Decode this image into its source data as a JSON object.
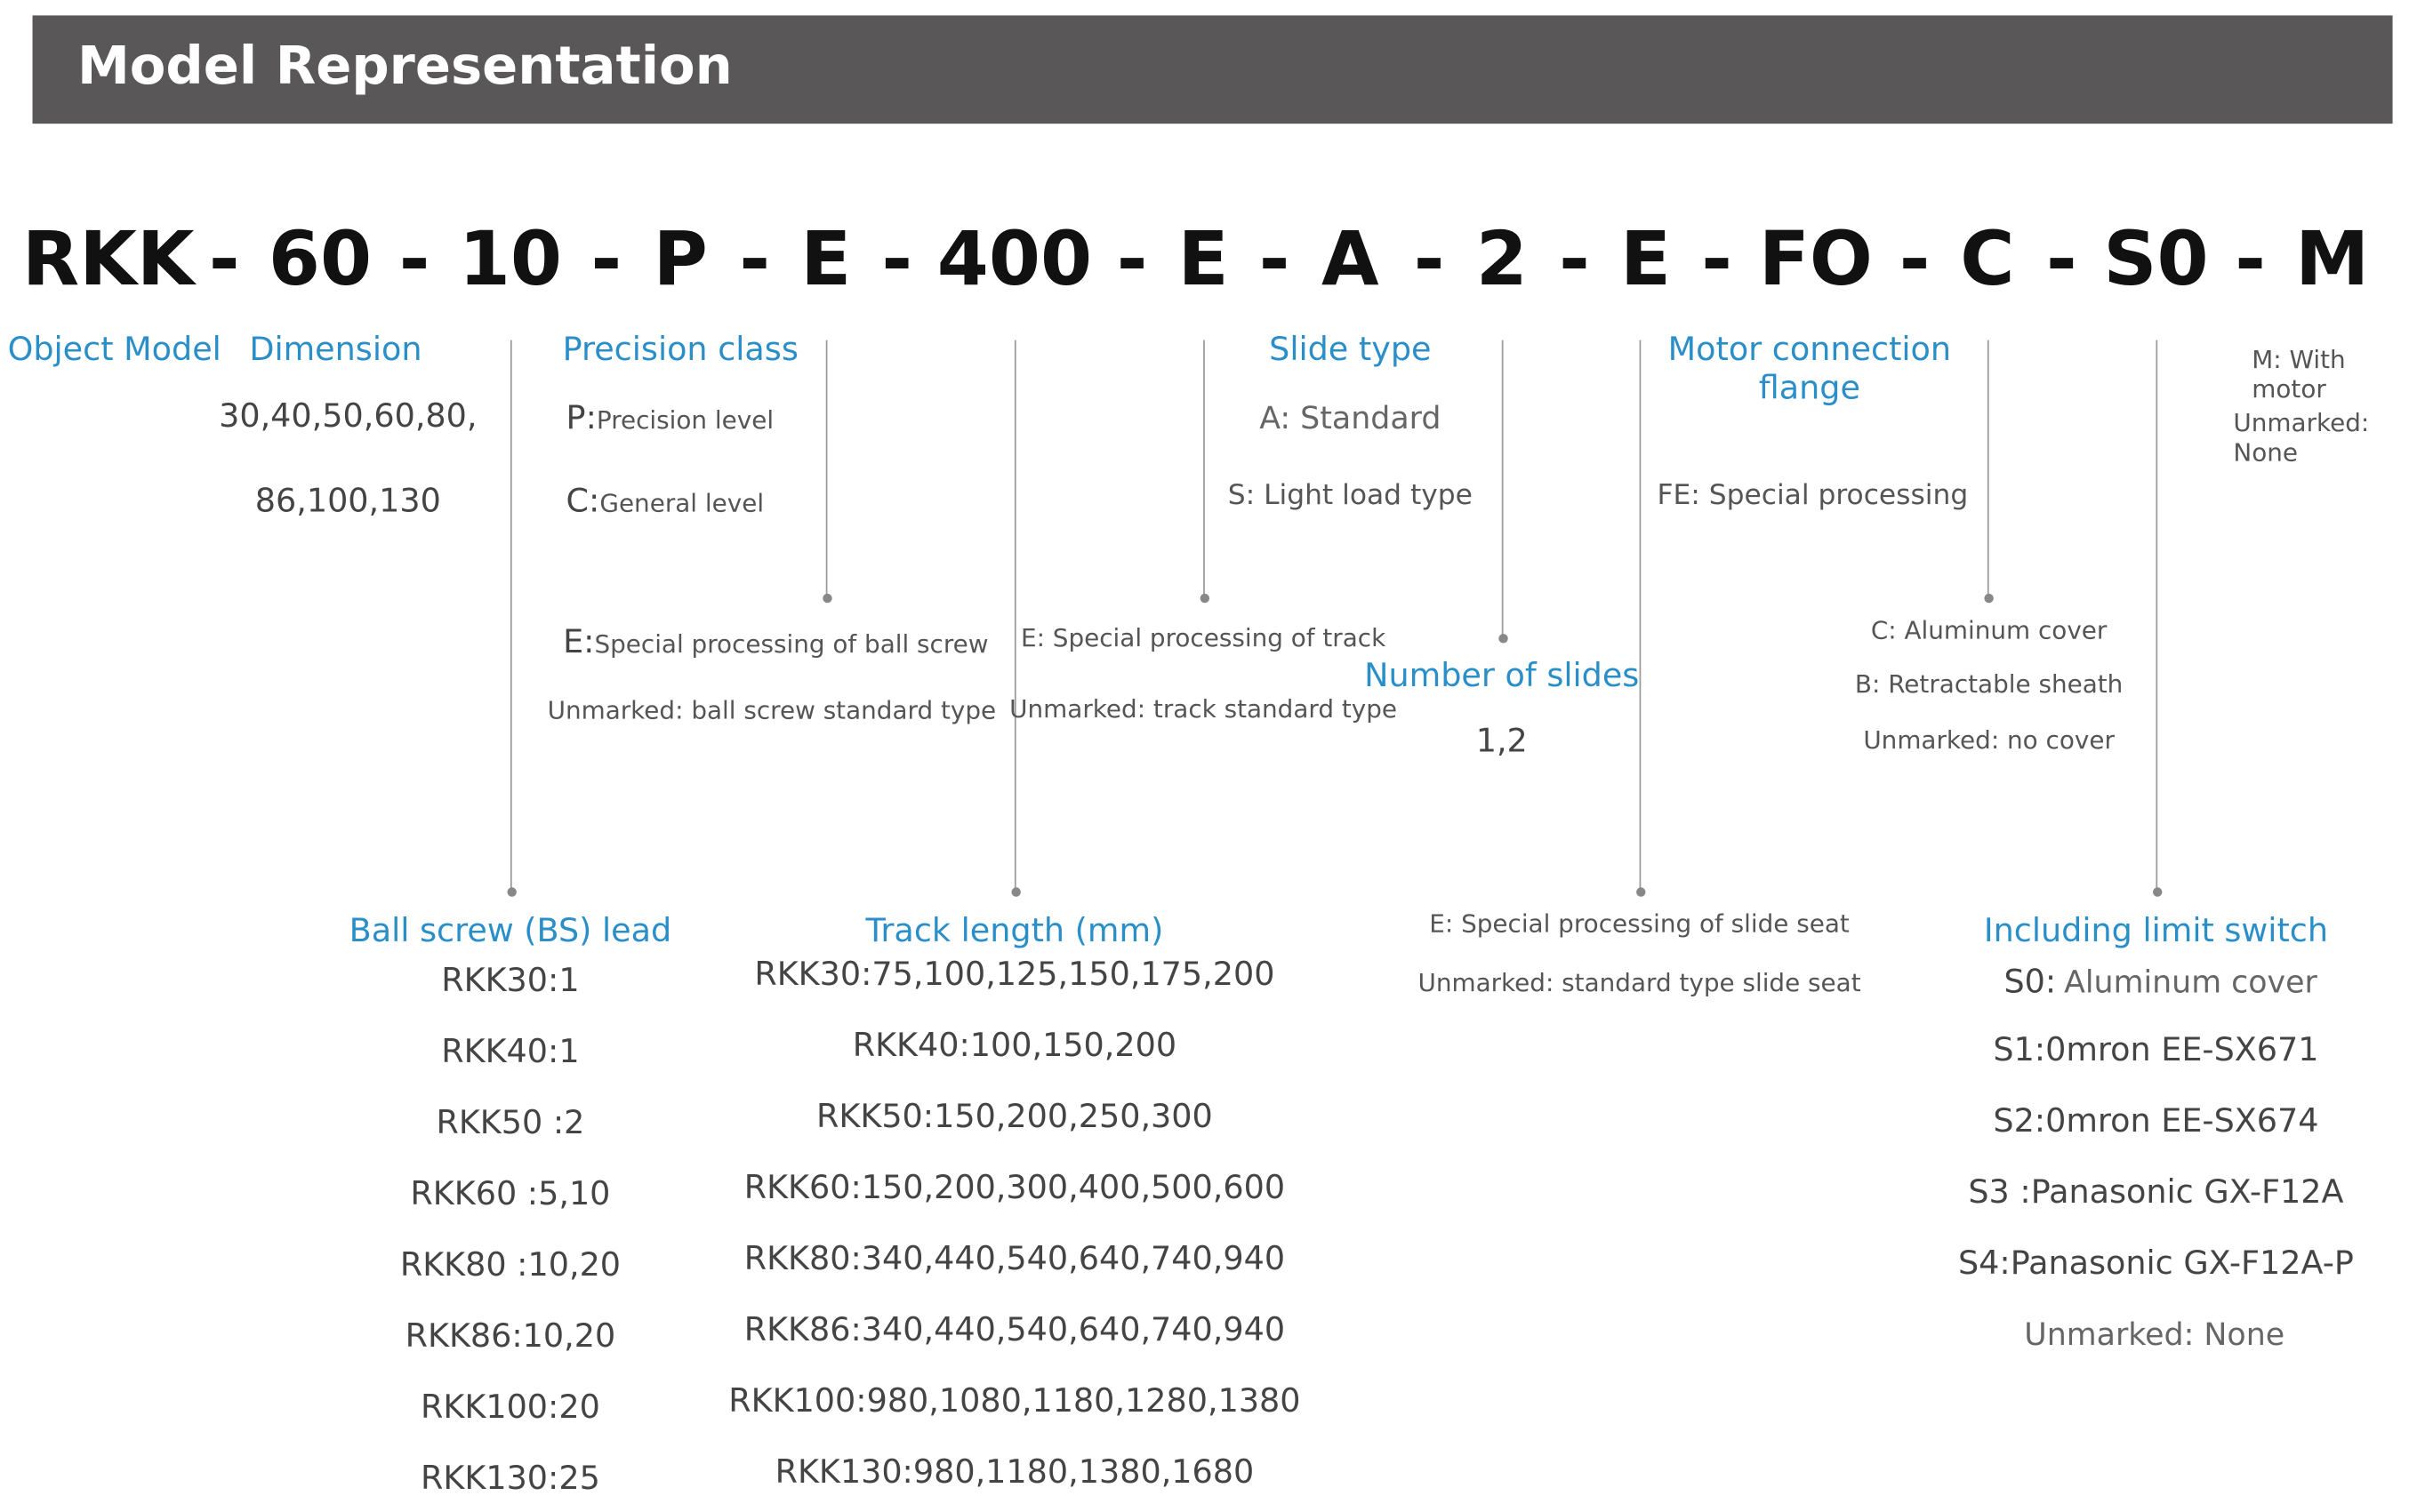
{
  "header": {
    "title": "Model Representation"
  },
  "model_code": [
    "RKK",
    "-",
    "60",
    "-",
    "10",
    "-",
    "P",
    "-",
    "E",
    "-",
    "400",
    "-",
    "E",
    "-",
    "A",
    "-",
    "2",
    "-",
    "E",
    "-",
    "FO",
    "-",
    "C",
    "-",
    "S0",
    "-",
    "M"
  ],
  "object_model": {
    "title": "Object Model"
  },
  "dimension": {
    "title": "Dimension",
    "values": [
      "30,40,50,60,80,",
      "86,100,130"
    ]
  },
  "precision": {
    "title": "Precision class",
    "p_code": "P:",
    "p_text": "Precision level",
    "c_code": "C:",
    "c_text": "General level"
  },
  "ball_screw_special": {
    "e_code": "E:",
    "e_text": "Special processing of ball screw",
    "unmarked": "Unmarked: ball screw standard type"
  },
  "track_special": {
    "e_text": "E: Special processing of track",
    "unmarked": "Unmarked: track standard type"
  },
  "slide_type": {
    "title": "Slide type",
    "a": "A: Standard",
    "s": "S: Light load type"
  },
  "number_of_slides": {
    "title": "Number of slides",
    "values": "1,2"
  },
  "slide_seat": {
    "e_text": "E: Special processing of slide seat",
    "unmarked": "Unmarked: standard type slide seat"
  },
  "motor_flange": {
    "title_line1": "Motor connection",
    "title_line2": "flange",
    "fe": "FE: Special processing"
  },
  "cover": {
    "c": "C: Aluminum cover",
    "b": "B: Retractable sheath",
    "unmarked": "Unmarked: no cover"
  },
  "motor": {
    "m": "M: With motor",
    "unmarked": "Unmarked: None"
  },
  "ball_screw_lead": {
    "title": "Ball screw (BS) lead",
    "rows": [
      "RKK30:1",
      "RKK40:1",
      "RKK50 :2",
      "RKK60 :5,10",
      "RKK80 :10,20",
      "RKK86:10,20",
      "RKK100:20",
      "RKK130:25"
    ]
  },
  "track_length": {
    "title": "Track length (mm)",
    "rows": [
      "RKK30:75,100,125,150,175,200",
      "RKK40:100,150,200",
      "RKK50:150,200,250,300",
      "RKK60:150,200,300,400,500,600",
      "RKK80:340,440,540,640,740,940",
      "RKK86:340,440,540,640,740,940",
      "RKK100:980,1080,1180,1280,1380",
      "RKK130:980,1180,1380,1680"
    ]
  },
  "limit_switch": {
    "title": "Including limit switch",
    "s0_code": "S0:",
    "s0_text": "Aluminum cover",
    "rows": [
      "S1:0mron EE-SX671",
      "S2:0mron EE-SX674",
      "S3 :Panasonic GX-F12A",
      "S4:Panasonic GX-F12A-P"
    ],
    "unmarked": "Unmarked: None"
  },
  "colors": {
    "header_bg": "#595757",
    "accent": "#2a8fc9",
    "text": "#444444"
  }
}
